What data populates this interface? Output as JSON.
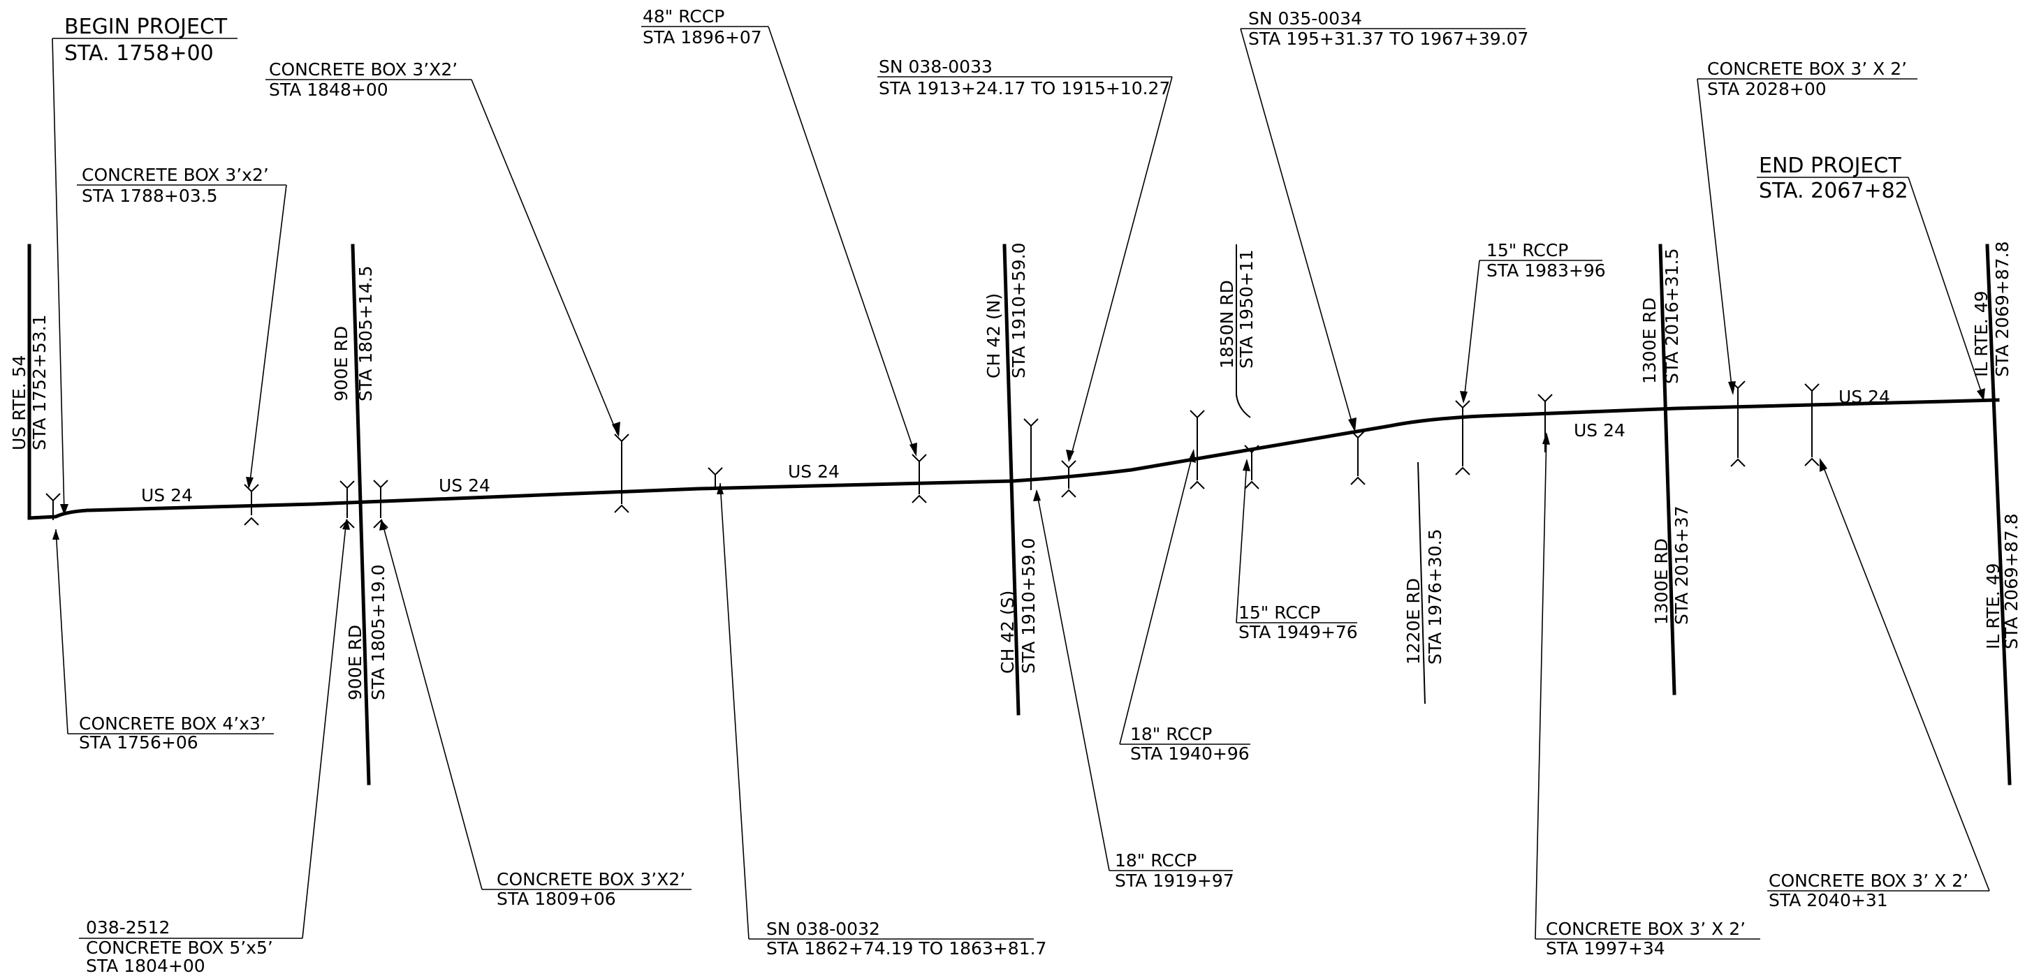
{
  "project": {
    "begin": {
      "title": "BEGIN PROJECT",
      "station": "STA. 1758+00"
    },
    "end": {
      "title": "END PROJECT",
      "station": "STA. 2067+82"
    }
  },
  "mainline": {
    "name": "US 24"
  },
  "crossroads": [
    {
      "id": "us54",
      "name": "US RTE. 54",
      "station": "STA 1752+53.1"
    },
    {
      "id": "900e-n",
      "name": "900E RD",
      "station": "STA 1805+14.5"
    },
    {
      "id": "900e-s",
      "name": "900E RD",
      "station": "STA 1805+19.0"
    },
    {
      "id": "ch42-n",
      "name": "CH 42 (N)",
      "station": "STA 1910+59.0"
    },
    {
      "id": "ch42-s",
      "name": "CH 42 (S)",
      "station": "STA 1910+59.0"
    },
    {
      "id": "1850n",
      "name": "1850N RD",
      "station": "STA 1950+11"
    },
    {
      "id": "1220e",
      "name": "1220E RD",
      "station": "STA 1976+30.5"
    },
    {
      "id": "1300e-n",
      "name": "1300E RD",
      "station": "STA 2016+31.5"
    },
    {
      "id": "1300e-s",
      "name": "1300E RD",
      "station": "STA 2016+37"
    },
    {
      "id": "il49-n",
      "name": "IL RTE. 49",
      "station": "STA 2069+87.8"
    },
    {
      "id": "il49-s",
      "name": "IL RTE. 49",
      "station": "STA 2069+87.8"
    }
  ],
  "structures": [
    {
      "id": "cb-1756",
      "line1": "CONCRETE BOX 4’x3’",
      "line2": "STA 1756+06"
    },
    {
      "id": "cb-1788",
      "line1": "CONCRETE BOX 3’x2’",
      "line2": "STA 1788+03.5"
    },
    {
      "id": "cb-1804",
      "line0": "038-2512",
      "line1": "CONCRETE BOX 5’x5’",
      "line2": "STA 1804+00"
    },
    {
      "id": "cb-1809",
      "line1": "CONCRETE BOX 3’X2’",
      "line2": "STA 1809+06"
    },
    {
      "id": "cb-1848",
      "line1": "CONCRETE BOX 3’X2’",
      "line2": "STA 1848+00"
    },
    {
      "id": "sn-0032",
      "line1": "SN 038-0032",
      "line2": "STA 1862+74.19 TO 1863+81.7"
    },
    {
      "id": "rccp-1896",
      "line1": "48\" RCCP",
      "line2": "STA 1896+07"
    },
    {
      "id": "sn-0033",
      "line1": "SN 038-0033",
      "line2": "STA 1913+24.17 TO 1915+10.27"
    },
    {
      "id": "rccp-1919",
      "line1": "18\" RCCP",
      "line2": "STA 1919+97"
    },
    {
      "id": "rccp-1940",
      "line1": "18\" RCCP",
      "line2": "STA 1940+96"
    },
    {
      "id": "rccp-1949",
      "line1": "15\" RCCP",
      "line2": "STA 1949+76"
    },
    {
      "id": "sn-0034",
      "line1": "SN 035-0034",
      "line2": "STA 195+31.37 TO 1967+39.07"
    },
    {
      "id": "rccp-1983",
      "line1": "15\" RCCP",
      "line2": "STA 1983+96"
    },
    {
      "id": "cb-1997",
      "line1": "CONCRETE BOX 3’ X 2’",
      "line2": "STA 1997+34"
    },
    {
      "id": "cb-2028",
      "line1": "CONCRETE BOX 3’ X 2’",
      "line2": "STA 2028+00"
    },
    {
      "id": "cb-2040",
      "line1": "CONCRETE BOX 3’ X 2’",
      "line2": "STA 2040+31"
    }
  ]
}
